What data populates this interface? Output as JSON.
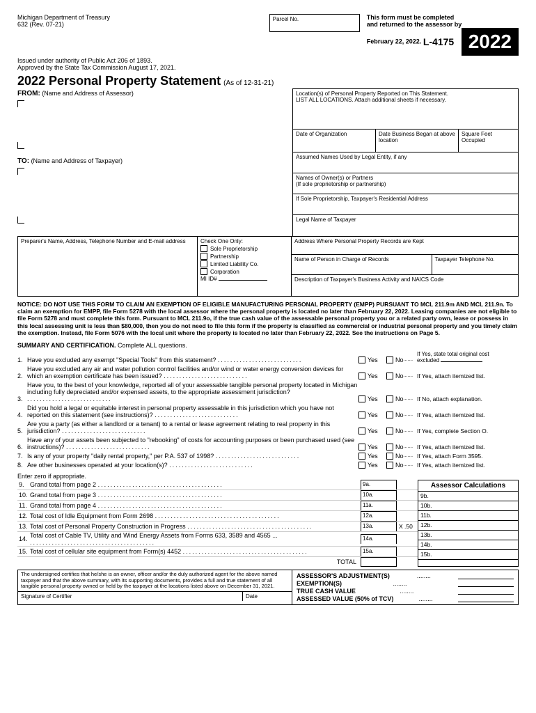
{
  "header": {
    "dept": "Michigan Department of Treasury",
    "form_no": "632  (Rev. 07-21)",
    "authority": "Issued under authority of Public Act 206 of 1893.",
    "approved": "Approved by the State Tax Commission August 17, 2021.",
    "parcel_lbl": "Parcel No.",
    "deadline1": "This form must be completed",
    "deadline2": "and returned to the assessor by",
    "deadline3": "February 22, 2022.",
    "form_code": "L-4175",
    "year": "2022",
    "title": "2022 Personal Property Statement",
    "asof": "(As of 12-31-21)",
    "from_lbl": "FROM:",
    "from_sub": "(Name and Address of Assessor)",
    "to_lbl": "TO:",
    "to_sub": "(Name and Address of Taxpayer)"
  },
  "right_cells": {
    "loc1": "Location(s) of Personal Property Reported on This Statement.",
    "loc2": "LIST ALL LOCATIONS.  Attach additional sheets if necessary.",
    "date_org": "Date of Organization",
    "date_biz": "Date Business Began at above location",
    "sqft": "Square Feet Occupied",
    "assumed": "Assumed Names Used by Legal Entity, if any",
    "owners": "Names of Owner(s) or Partners",
    "owners2": "(If sole proprietorship or partnership)",
    "soleprop": "If Sole Proprietorship, Taxpayer's Residential Address",
    "legalname": "Legal Name of Taxpayer"
  },
  "prep": {
    "left": "Preparer's Name, Address, Telephone Number and E-mail address",
    "check_lbl": "Check One Only:",
    "opts": [
      "Sole Proprietorship",
      "Partnership",
      "Limited Liability Co.",
      "Corporation"
    ],
    "mi_id": "MI ID#",
    "addr_records": "Address Where Personal Property Records are Kept",
    "person_charge": "Name of Person in Charge of Records",
    "taxpayer_tel": "Taxpayer Telephone No.",
    "biz_activity": "Description of Taxpayer's Business Activity and NAICS Code"
  },
  "notice": "NOTICE: DO NOT USE THIS FORM TO CLAIM AN EXEMPTION OF ELIGIBLE MANUFACTURING PERSONAL PROPERTY (EMPP) PURSUANT TO MCL 211.9m AND MCL 211.9n. To claim an exemption for EMPP, file Form 5278 with the local assessor where the personal property is located no later than February 22, 2022. Leasing companies are not eligible to file Form 5278 and must complete this form. Pursuant to MCL 211.9o, if the true cash value of the assessable personal property you or a related party own, lease or possess in this local assessing unit is less than $80,000, then you do not need to file this form if the property is classified as commercial or industrial personal property and you timely claim the exemption. Instead, file Form 5076 with the local unit where the property is located no later than February 22, 2022. See the instructions on Page 5.",
  "summary": {
    "hd": "SUMMARY AND CERTIFICATION.",
    "hd2": "Complete ALL questions.",
    "yes": "Yes",
    "no": "No",
    "q1": "Have you excluded any exempt \"Special Tools\" from this statement?",
    "h1a": "If Yes, state total original cost",
    "h1b": "excluded",
    "q2": "Have you excluded any air and water pollution control facilities and/or wind or water energy conversion devices for which an exemption certificate has been issued?",
    "h2": "If Yes, attach itemized list.",
    "q3": "Have you, to the best of your knowledge, reported all of your assessable tangible personal property located in Michigan including fully depreciated and/or expensed assets, to the appropriate assessment jurisdiction?",
    "h3": "If No, attach explanation.",
    "q4": "Did you hold a legal or equitable interest in personal property assessable in this jurisdiction which you have not reported on this statement (see instructions)?",
    "h4": "If Yes, attach itemized list.",
    "q5": "Are you a party (as either a landlord or a tenant) to a rental or lease agreement relating to real property in this jurisdiction?",
    "h5": "If Yes, complete Section O.",
    "q6": "Have any of your assets been subjected to \"rebooking\" of costs for accounting purposes or been purchased used (see instructions)?",
    "h6": "If Yes, attach itemized list.",
    "q7": "Is any of your property \"daily rental property,\" per P.A. 537 of 1998?",
    "h7": "If Yes, attach Form 3595.",
    "q8": "Are other businesses operated at your location(s)?",
    "h8": "If Yes, attach itemized list."
  },
  "totals": {
    "enter_zero": "Enter zero if appropriate.",
    "ac_hd": "Assessor Calculations",
    "rows": [
      {
        "n": "9.",
        "t": "Grand total from page 2",
        "b": "9a.",
        "a": "9b."
      },
      {
        "n": "10.",
        "t": "Grand total from page 3",
        "b": "10a.",
        "a": "10b."
      },
      {
        "n": "11.",
        "t": "Grand total from page 4",
        "b": "11a.",
        "a": "11b."
      },
      {
        "n": "12.",
        "t": "Total cost of Idle Equipment from Form 2698",
        "b": "12a.",
        "a": "12b."
      },
      {
        "n": "13.",
        "t": "Total cost of Personal Property Construction in Progress",
        "b": "13a.",
        "a": "13b.",
        "x": "X .50"
      },
      {
        "n": "14.",
        "t": "Total cost of Cable TV, Utility and Wind Energy Assets from Forms 633, 3589 and 4565 ...",
        "b": "14a.",
        "a": "14b."
      },
      {
        "n": "15.",
        "t": "Total cost of cellular site equipment from Form(s) 4452",
        "b": "15a.",
        "a": "15b."
      }
    ],
    "total_lbl": "TOTAL"
  },
  "cert": {
    "txt": "The undersigned certifies that he/she is an owner, officer and/or the duly authorized agent for the above named taxpayer and that the above summary, with its supporting documents, provides a full and true statement of all tangible personal property owned or held by the taxpayer at the locations listed above on December 31, 2021.",
    "sig": "Signature of Certifier",
    "date": "Date",
    "adj": "ASSESSOR'S ADJUSTMENT(S)",
    "exm": "EXEMPTION(S)",
    "tcv": "TRUE CASH VALUE",
    "av": "ASSESSED VALUE (50% of TCV)"
  }
}
